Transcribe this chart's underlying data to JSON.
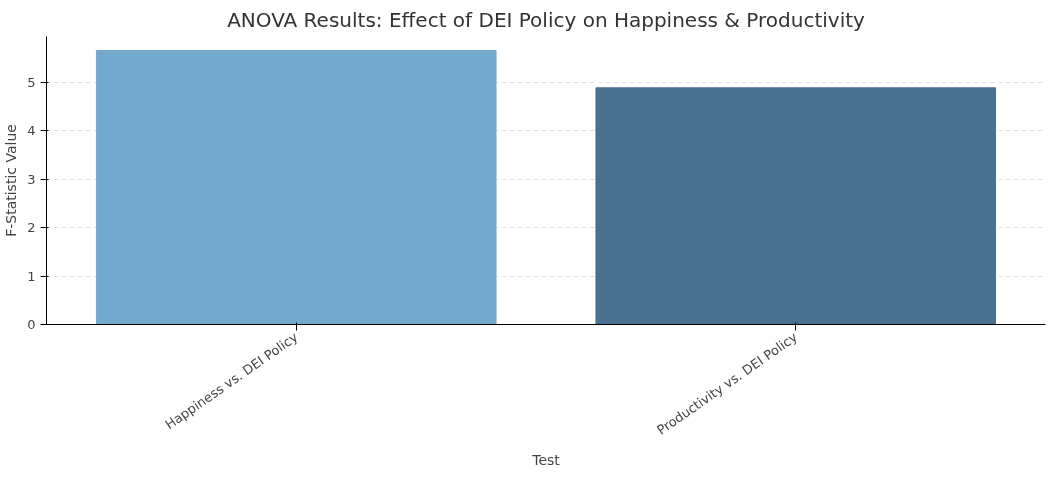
{
  "chart_data": {
    "type": "bar",
    "title": "ANOVA Results: Effect of DEI Policy on Happiness & Productivity",
    "xlabel": "Test",
    "ylabel": "F-Statistic Value",
    "categories": [
      "Happiness vs. DEI Policy",
      "Productivity vs. DEI Policy"
    ],
    "values": [
      5.66,
      4.89
    ],
    "colors": [
      "#74a9cf",
      "#4a7090"
    ],
    "ylim": [
      0,
      5.95
    ],
    "yticks": [
      0,
      1,
      2,
      3,
      4,
      5
    ],
    "grid": "y"
  }
}
